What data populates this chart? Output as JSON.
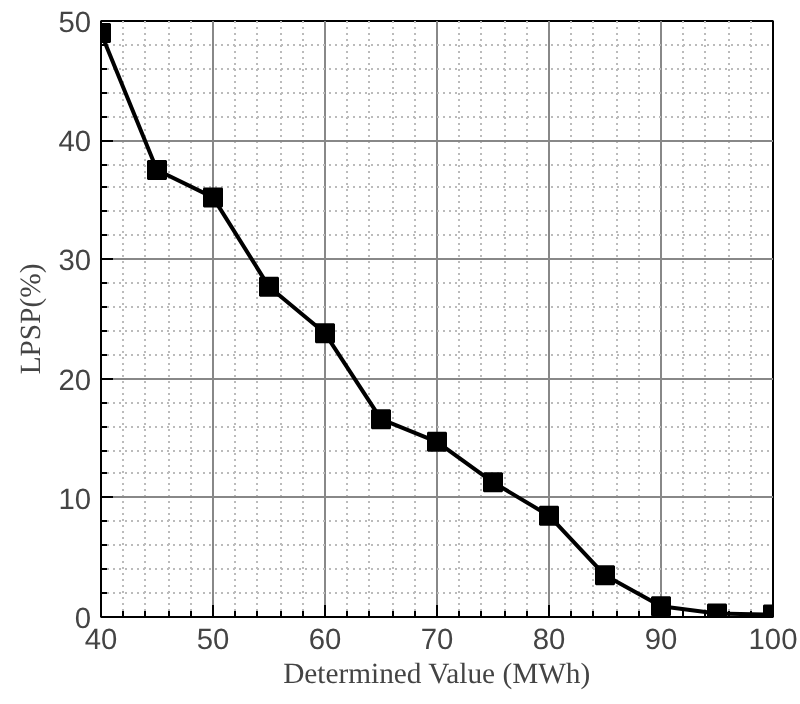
{
  "chart_data": {
    "type": "line",
    "xlabel": "Determined Value (MWh)",
    "ylabel": "LPSP(%)",
    "x": [
      40,
      45,
      50,
      55,
      60,
      65,
      70,
      75,
      80,
      85,
      90,
      95,
      100
    ],
    "series": [
      {
        "color": "#000000",
        "values": [
          49,
          37.5,
          35.2,
          27.7,
          23.8,
          16.6,
          14.7,
          11.3,
          8.5,
          3.5,
          0.9,
          0.3,
          0.2
        ]
      }
    ],
    "xlim": [
      40,
      100
    ],
    "xticks": [
      40,
      50,
      60,
      70,
      80,
      90,
      100
    ],
    "ylim": [
      0,
      50
    ],
    "yticks": [
      0,
      10,
      20,
      30,
      40,
      50
    ],
    "grid": true,
    "marker": "square",
    "line_style": "solid"
  }
}
